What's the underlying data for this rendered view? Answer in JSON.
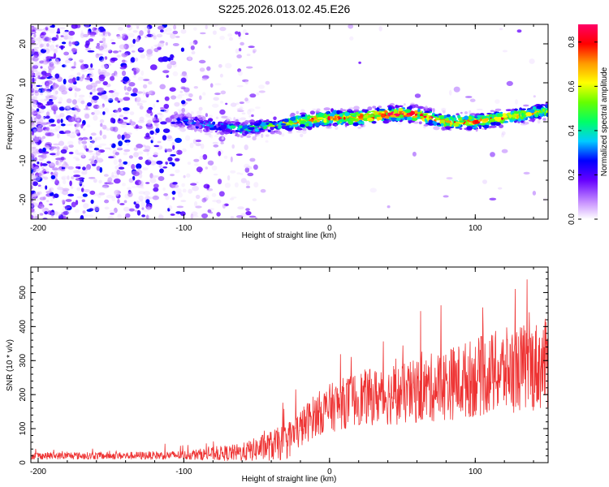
{
  "chart_data": [
    {
      "type": "heatmap",
      "title": "S225.2026.013.02.45.E26",
      "xlabel": "Height of straight line (km)",
      "ylabel": "Frequency (Hz)",
      "xlim": [
        -205,
        150
      ],
      "ylim": [
        -25,
        25
      ],
      "x_ticks": [
        -200,
        -100,
        0,
        100
      ],
      "x_tick_labels": [
        "-200",
        "-100",
        "0",
        "100"
      ],
      "y_ticks": [
        -20,
        -10,
        0,
        10,
        20
      ],
      "y_tick_labels": [
        "-20",
        "-10",
        "0",
        "10",
        "20"
      ],
      "signal_band": {
        "description": "narrow band near 0 Hz",
        "x": [
          -105,
          -80,
          -60,
          -40,
          -20,
          0,
          20,
          40,
          60,
          80,
          100,
          120,
          150
        ],
        "center_hz": [
          0.5,
          -1,
          -2,
          -1,
          0,
          1,
          1,
          2,
          2,
          0,
          0,
          1,
          3
        ],
        "amplitude": [
          0.3,
          0.35,
          0.45,
          0.5,
          0.7,
          0.75,
          0.8,
          0.85,
          0.82,
          0.72,
          0.75,
          0.72,
          0.6
        ]
      },
      "colorbar": {
        "label": "Normalized spectral amplitude",
        "range": [
          0.0,
          0.88
        ],
        "ticks": [
          0.0,
          0.2,
          0.4,
          0.6,
          0.8
        ],
        "tick_labels": [
          "0.0",
          "0.2",
          "0.4",
          "0.6",
          "0.8"
        ]
      }
    },
    {
      "type": "line",
      "title": "",
      "xlabel": "Height of straight line (km)",
      "ylabel": "SNR (10 * v/v)",
      "xlim": [
        -205,
        150
      ],
      "ylim": [
        0,
        575
      ],
      "x_ticks": [
        -200,
        -100,
        0,
        100
      ],
      "x_tick_labels": [
        "-200",
        "-100",
        "0",
        "100"
      ],
      "y_ticks": [
        0,
        100,
        200,
        300,
        400,
        500
      ],
      "y_tick_labels": [
        "0",
        "100",
        "200",
        "300",
        "400",
        "500"
      ],
      "series": [
        {
          "name": "SNR",
          "color": "#ee3333",
          "trend_x": [
            -205,
            -150,
            -100,
            -60,
            -30,
            -10,
            0,
            20,
            50,
            80,
            100,
            120,
            150
          ],
          "trend_y": [
            20,
            20,
            22,
            30,
            60,
            140,
            160,
            190,
            200,
            230,
            250,
            270,
            290
          ],
          "spread": [
            12,
            12,
            15,
            30,
            60,
            70,
            80,
            90,
            100,
            120,
            130,
            140,
            150
          ]
        }
      ]
    }
  ]
}
